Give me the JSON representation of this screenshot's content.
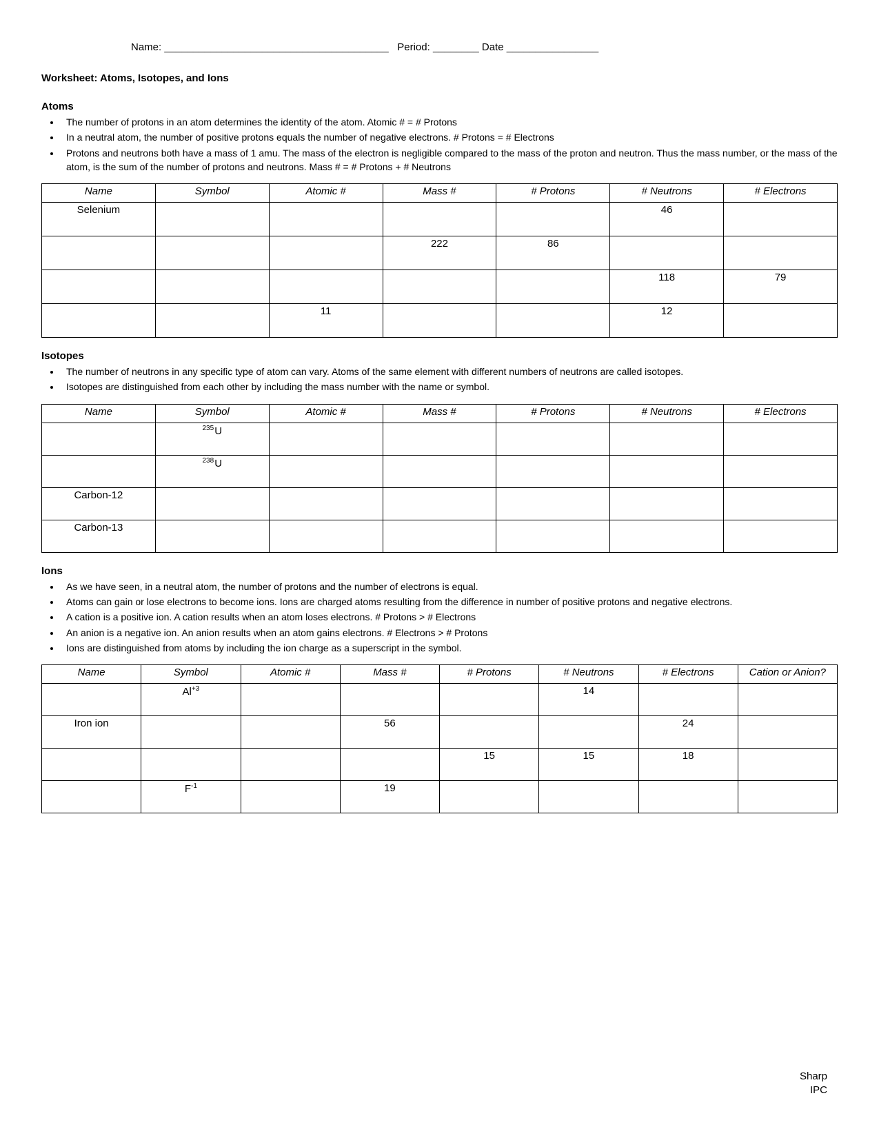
{
  "header": {
    "name_label": "Name:",
    "name_line": "_______________________________________",
    "period_label": "Period:",
    "period_line": "________",
    "date_label": "Date",
    "date_line": "________________"
  },
  "title": "Worksheet:   Atoms, Isotopes, and Ions",
  "atoms": {
    "heading": "Atoms",
    "bullets": [
      "The number of protons in an atom determines the identity of the atom.  Atomic # = # Protons",
      "In a neutral atom, the number of positive protons equals the number of negative electrons.  # Protons = # Electrons",
      "Protons and neutrons both have a mass of 1 amu.  The mass of the electron is negligible compared to the mass of the proton and neutron.  Thus the mass number, or the mass of the atom, is the sum of the number of protons and neutrons.  Mass # = # Protons + # Neutrons"
    ],
    "columns": [
      "Name",
      "Symbol",
      "Atomic #",
      "Mass #",
      "# Protons",
      "# Neutrons",
      "# Electrons"
    ],
    "rows": [
      {
        "name": "Selenium",
        "symbol": "",
        "atomic": "",
        "mass": "",
        "protons": "",
        "neutrons": "46",
        "electrons": ""
      },
      {
        "name": "",
        "symbol": "",
        "atomic": "",
        "mass": "222",
        "protons": "86",
        "neutrons": "",
        "electrons": ""
      },
      {
        "name": "",
        "symbol": "",
        "atomic": "",
        "mass": "",
        "protons": "",
        "neutrons": "118",
        "electrons": "79"
      },
      {
        "name": "",
        "symbol": "",
        "atomic": "11",
        "mass": "",
        "protons": "",
        "neutrons": "12",
        "electrons": ""
      }
    ]
  },
  "isotopes": {
    "heading": "Isotopes",
    "bullets": [
      "The number of neutrons in any specific type of atom can vary.   Atoms of the same element with different numbers of neutrons are called isotopes.",
      "Isotopes are distinguished from each other by including the mass number with the name or symbol."
    ],
    "columns": [
      "Name",
      "Symbol",
      "Atomic #",
      "Mass #",
      "# Protons",
      "# Neutrons",
      "# Electrons"
    ],
    "rows": [
      {
        "name": "",
        "symbol_sup": "235",
        "symbol_base": "U",
        "atomic": "",
        "mass": "",
        "protons": "",
        "neutrons": "",
        "electrons": ""
      },
      {
        "name": "",
        "symbol_sup": "238",
        "symbol_base": "U",
        "atomic": "",
        "mass": "",
        "protons": "",
        "neutrons": "",
        "electrons": ""
      },
      {
        "name": "Carbon-12",
        "symbol_sup": "",
        "symbol_base": "",
        "atomic": "",
        "mass": "",
        "protons": "",
        "neutrons": "",
        "electrons": ""
      },
      {
        "name": "Carbon-13",
        "symbol_sup": "",
        "symbol_base": "",
        "atomic": "",
        "mass": "",
        "protons": "",
        "neutrons": "",
        "electrons": ""
      }
    ]
  },
  "ions": {
    "heading": "Ions",
    "bullets": [
      "As we have seen, in a neutral atom, the number of protons and the number of electrons is equal.",
      "Atoms can gain or lose electrons to become ions.  Ions are charged atoms resulting from the difference in number of positive protons and negative electrons.",
      "A cation is a positive ion.  A cation results when an atom loses electrons.  # Protons > # Electrons",
      "An anion is a negative ion.  An anion results when an atom gains electrons.  # Electrons > # Protons",
      "Ions are distinguished from atoms by including the ion charge as a superscript in the symbol."
    ],
    "columns": [
      "Name",
      "Symbol",
      "Atomic #",
      "Mass #",
      "# Protons",
      "# Neutrons",
      "# Electrons",
      "Cation or Anion?"
    ],
    "rows": [
      {
        "name": "",
        "symbol_base": "Al",
        "symbol_sup": "+3",
        "atomic": "",
        "mass": "",
        "protons": "",
        "neutrons": "14",
        "electrons": "",
        "ca": ""
      },
      {
        "name": "Iron ion",
        "symbol_base": "",
        "symbol_sup": "",
        "atomic": "",
        "mass": "56",
        "protons": "",
        "neutrons": "",
        "electrons": "24",
        "ca": ""
      },
      {
        "name": "",
        "symbol_base": "",
        "symbol_sup": "",
        "atomic": "",
        "mass": "",
        "protons": "15",
        "neutrons": "15",
        "electrons": "18",
        "ca": ""
      },
      {
        "name": "",
        "symbol_base": "F",
        "symbol_sup": "-1",
        "atomic": "",
        "mass": "19",
        "protons": "",
        "neutrons": "",
        "electrons": "",
        "ca": ""
      }
    ]
  },
  "footer": {
    "line1": "Sharp",
    "line2": "IPC"
  }
}
